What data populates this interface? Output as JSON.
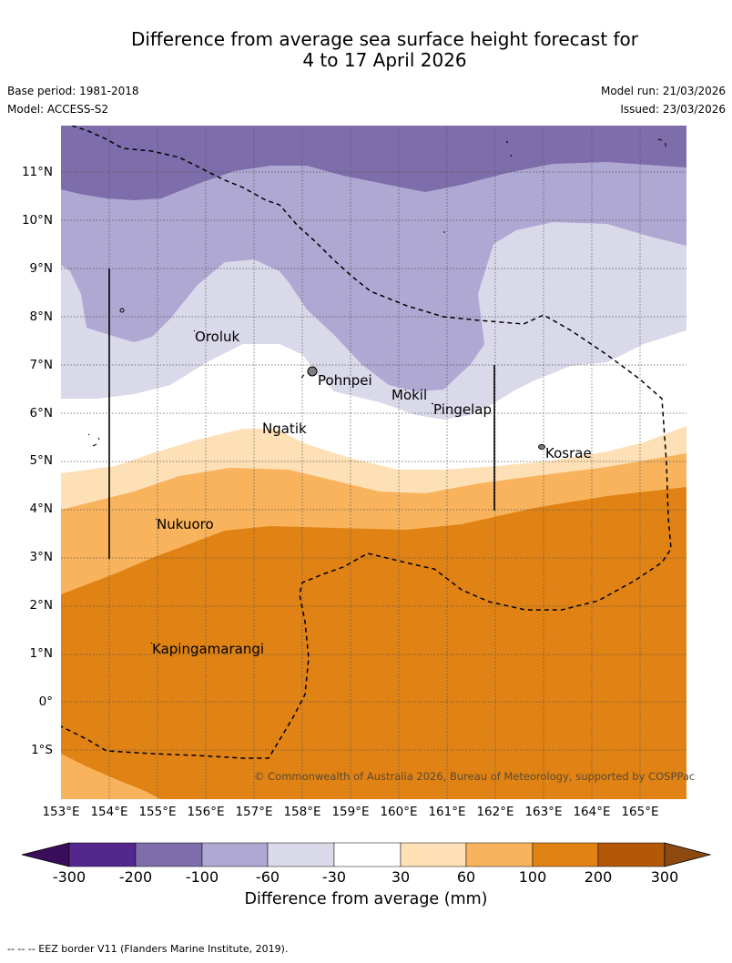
{
  "title_line1": "Difference from average sea surface height forecast for",
  "title_line2": "4 to 17 April 2026",
  "base_period": "Base period: 1981-2018",
  "model": "Model: ACCESS-S2",
  "model_run": "Model run: 21/03/2026",
  "issued": "Issued: 23/03/2026",
  "lat_labels": [
    "11°N",
    "10°N",
    "9°N",
    "8°N",
    "7°N",
    "6°N",
    "5°N",
    "4°N",
    "3°N",
    "2°N",
    "1°N",
    "0°",
    "1°S"
  ],
  "lon_labels": [
    "153°E",
    "154°E",
    "155°E",
    "156°E",
    "157°E",
    "158°E",
    "159°E",
    "160°E",
    "161°E",
    "162°E",
    "163°E",
    "164°E",
    "165°E"
  ],
  "places": {
    "oroluk": "Oroluk",
    "pohnpei": "Pohnpei",
    "mokil": "Mokil",
    "pingelap": "Pingelap",
    "ngatik": "Ngatik",
    "kosrae": "Kosrae",
    "nukuoro": "Nukuoro",
    "kapingamarangi": "Kapingamarangi"
  },
  "copyright": "© Commonwealth of Australia 2026, Bureau of Meteorology, supported by COSPPac",
  "colorbar": {
    "title": "Difference from average (mm)",
    "ticks": [
      "-300",
      "-200",
      "-100",
      "-60",
      "-30",
      "30",
      "60",
      "100",
      "200",
      "300"
    ],
    "colors": {
      "below_min": "#3a0d5c",
      "c1": "#54278f",
      "c2": "#7d6dab",
      "c3": "#aea8d2",
      "c4": "#d9d9ea",
      "c5": "#ffffff",
      "c6": "#fee0b6",
      "c7": "#f8b35c",
      "c8": "#e08214",
      "c9": "#b35806",
      "above_max": "#8c4a10"
    }
  },
  "footer": "-- -- -- EEZ border V11 (Flanders Marine Institute, 2019)."
}
